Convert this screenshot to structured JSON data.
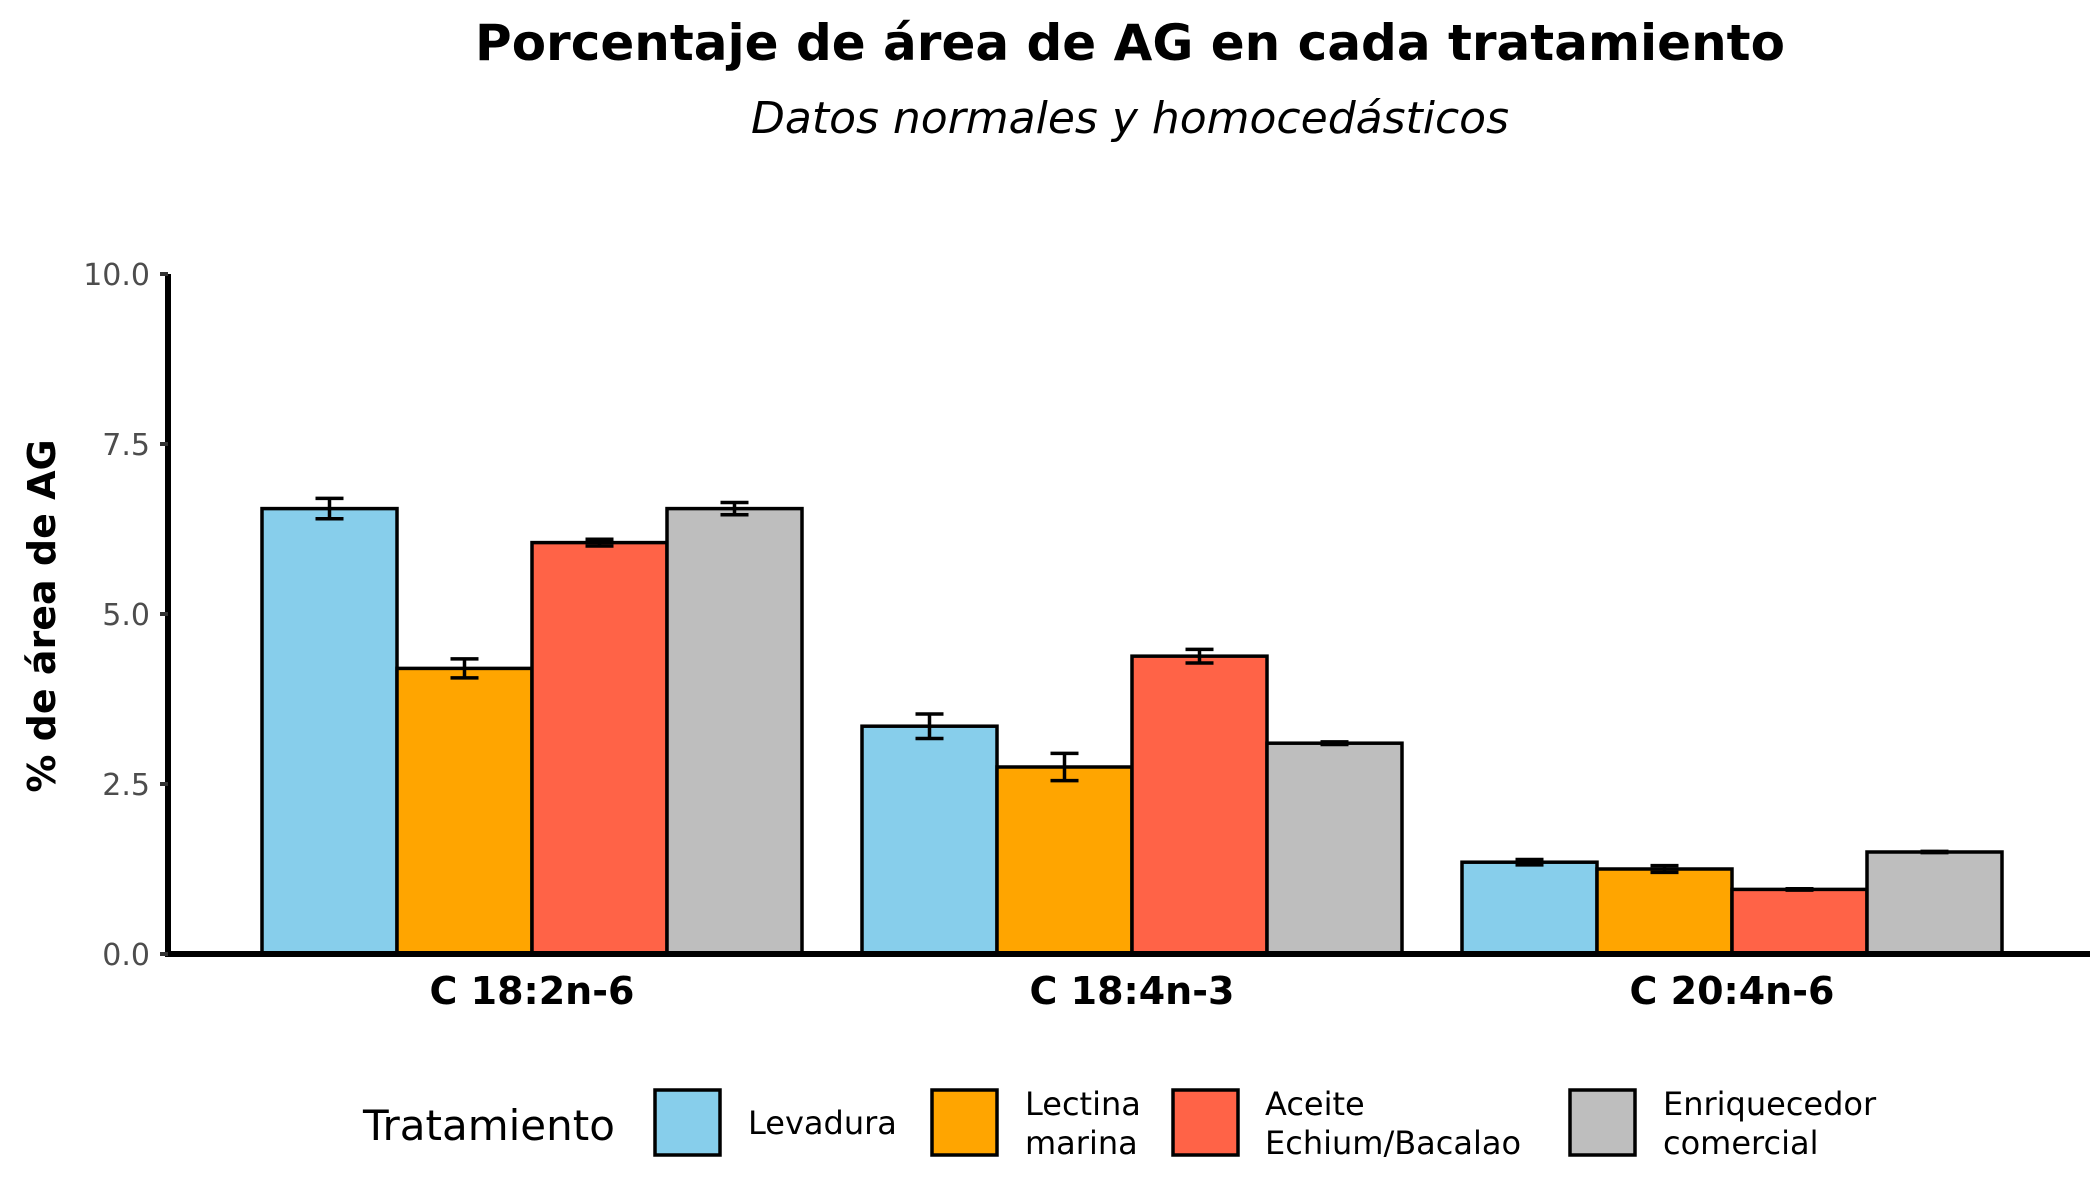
{
  "chart_data": {
    "type": "bar",
    "title": "Porcentaje de área de AG en cada tratamiento",
    "subtitle": "Datos normales y homocedásticos",
    "xlabel": "",
    "ylabel": "% de área de AG",
    "ylim": [
      0,
      10
    ],
    "yticks": [
      "0.0",
      "2.5",
      "5.0",
      "7.5",
      "10.0"
    ],
    "grid": false,
    "legend_position": "bottom",
    "legend_title": "Tratamiento",
    "categories": [
      "C 18:2n-6",
      "C 18:4n-3",
      "C 20:4n-6"
    ],
    "series": [
      {
        "name": "Levadura",
        "label_lines": [
          "Levadura"
        ],
        "color": "#87CEEB",
        "values": [
          6.55,
          3.35,
          1.35
        ],
        "errors": [
          0.15,
          0.18,
          0.04
        ]
      },
      {
        "name": "Lectina marina",
        "label_lines": [
          "Lectina",
          "marina"
        ],
        "color": "#FFA500",
        "values": [
          4.2,
          2.75,
          1.25
        ],
        "errors": [
          0.14,
          0.2,
          0.05
        ]
      },
      {
        "name": "Aceite Echium/Bacalao",
        "label_lines": [
          "Aceite",
          "Echium/Bacalao"
        ],
        "color": "#FF6347",
        "values": [
          6.05,
          4.38,
          0.95
        ],
        "errors": [
          0.05,
          0.1,
          0.01
        ]
      },
      {
        "name": "Enriquecedor comercial",
        "label_lines": [
          "Enriquecedor",
          "comercial"
        ],
        "color": "#BEBEBE",
        "values": [
          6.55,
          3.1,
          1.5
        ],
        "errors": [
          0.09,
          0.02,
          0.01
        ]
      }
    ]
  }
}
